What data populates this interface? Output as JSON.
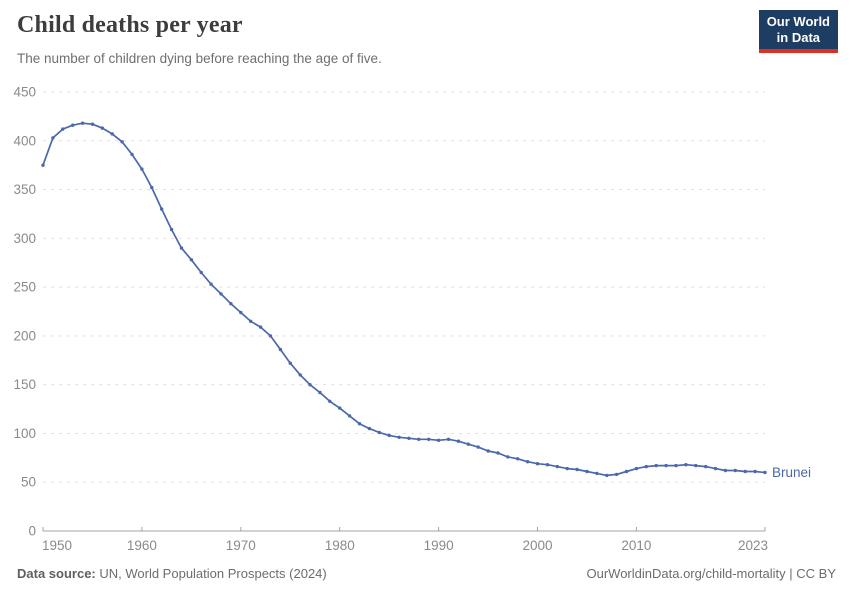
{
  "header": {
    "title": "Child deaths per year",
    "subtitle": "The number of children dying before reaching the age of five.",
    "logo": {
      "line1": "Our World",
      "line2": "in Data"
    }
  },
  "footer": {
    "source_label": "Data source:",
    "source_text": " UN, World Population Prospects (2024)",
    "link_text": "OurWorldinData.org/child-mortality | CC BY"
  },
  "colors": {
    "series_line": "#4a68ab",
    "gridline": "#e0e0e0",
    "axis_line": "#a3a3a3",
    "tick_label": "#8a8a8a",
    "logo_bg": "#1d3d63",
    "logo_stripe": "#dc3022"
  },
  "chart_data": {
    "type": "line",
    "title": "Child deaths per year",
    "subtitle": "The number of children dying before reaching the age of five.",
    "xlabel": "",
    "ylabel": "",
    "xlim": [
      1950,
      2023
    ],
    "ylim": [
      0,
      450
    ],
    "grid": "horizontal-dashed",
    "legend_position": "end-of-line-label",
    "x_ticks": [
      1950,
      1960,
      1970,
      1980,
      1990,
      2000,
      2010,
      2023
    ],
    "y_ticks": [
      0,
      50,
      100,
      150,
      200,
      250,
      300,
      350,
      400,
      450
    ],
    "series": [
      {
        "name": "Brunei",
        "color": "#4a68ab",
        "x": [
          1950,
          1951,
          1952,
          1953,
          1954,
          1955,
          1956,
          1957,
          1958,
          1959,
          1960,
          1961,
          1962,
          1963,
          1964,
          1965,
          1966,
          1967,
          1968,
          1969,
          1970,
          1971,
          1972,
          1973,
          1974,
          1975,
          1976,
          1977,
          1978,
          1979,
          1980,
          1981,
          1982,
          1983,
          1984,
          1985,
          1986,
          1987,
          1988,
          1989,
          1990,
          1991,
          1992,
          1993,
          1994,
          1995,
          1996,
          1997,
          1998,
          1999,
          2000,
          2001,
          2002,
          2003,
          2004,
          2005,
          2006,
          2007,
          2008,
          2009,
          2010,
          2011,
          2012,
          2013,
          2014,
          2015,
          2016,
          2017,
          2018,
          2019,
          2020,
          2021,
          2022,
          2023
        ],
        "values": [
          375,
          403,
          412,
          416,
          418,
          417,
          413,
          407,
          399,
          386,
          371,
          352,
          330,
          309,
          290,
          278,
          265,
          253,
          243,
          233,
          224,
          215,
          209,
          200,
          186,
          172,
          160,
          150,
          142,
          133,
          126,
          118,
          110,
          105,
          101,
          98,
          96,
          95,
          94,
          94,
          93,
          94,
          92,
          89,
          86,
          82,
          80,
          76,
          74,
          71,
          69,
          68,
          66,
          64,
          63,
          61,
          59,
          57,
          58,
          61,
          64,
          66,
          67,
          67,
          67,
          68,
          67,
          66,
          64,
          62,
          62,
          61,
          61,
          60
        ]
      }
    ]
  }
}
